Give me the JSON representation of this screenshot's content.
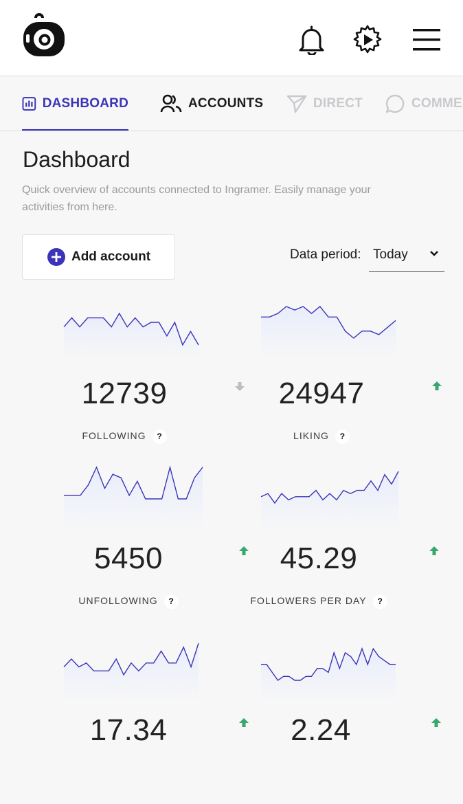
{
  "tabs": [
    {
      "label": "DASHBOARD",
      "state": "active"
    },
    {
      "label": "ACCOUNTS",
      "state": "normal"
    },
    {
      "label": "DIRECT",
      "state": "disabled"
    },
    {
      "label": "COMMENTS",
      "state": "disabled"
    }
  ],
  "header_icons": [
    "logo-icon",
    "bell-icon",
    "gear-play-icon",
    "menu-icon"
  ],
  "page": {
    "title": "Dashboard",
    "subtitle": "Quick overview of accounts connected to Ingramer. Easily manage your activities from here."
  },
  "add_account": {
    "label": "Add account"
  },
  "data_period": {
    "label": "Data period:",
    "selected": "Today"
  },
  "colors": {
    "accent": "#3b34b8",
    "up": "#3aa76d",
    "down": "#bdbdbd",
    "spark_fill": "#e9edfb"
  },
  "stats": [
    {
      "value": "12739",
      "label": "FOLLOWING",
      "trend": "down",
      "help": "?",
      "spark": [
        4,
        2,
        4,
        2,
        2,
        2,
        4,
        1,
        4,
        2,
        4,
        3,
        3,
        6,
        3,
        8,
        5,
        8
      ]
    },
    {
      "value": "24947",
      "label": "LIKING",
      "trend": "up",
      "help": "?",
      "spark": [
        3,
        3,
        2,
        0,
        1,
        0,
        2,
        0,
        3,
        3,
        7,
        9,
        7,
        7,
        8,
        6,
        4
      ]
    },
    {
      "value": "5450",
      "label": "UNFOLLOWING",
      "trend": "up",
      "help": "?",
      "spark": [
        8,
        8,
        8,
        5,
        0,
        6,
        2,
        3,
        8,
        4,
        9,
        9,
        9,
        0,
        9,
        9,
        3,
        0
      ]
    },
    {
      "value": "45.29",
      "label": "FOLLOWERS PER DAY",
      "trend": "up",
      "help": "?",
      "spark": [
        8,
        7,
        10,
        7,
        9,
        8,
        8,
        8,
        6,
        9,
        7,
        9,
        6,
        7,
        6,
        6,
        3,
        6,
        1,
        4,
        0
      ]
    },
    {
      "value": "17.34",
      "label": "",
      "trend": "up",
      "help": "",
      "spark": [
        6,
        4,
        6,
        5,
        7,
        7,
        7,
        4,
        8,
        5,
        7,
        5,
        5,
        2,
        5,
        5,
        1,
        6,
        0
      ]
    },
    {
      "value": "2.24",
      "label": "",
      "trend": "up",
      "help": "",
      "spark": [
        6,
        6,
        8,
        10,
        9,
        9,
        10,
        10,
        9,
        9,
        7,
        7,
        8,
        3,
        7,
        3,
        4,
        6,
        2,
        6,
        2,
        4,
        5,
        6,
        6
      ]
    }
  ]
}
